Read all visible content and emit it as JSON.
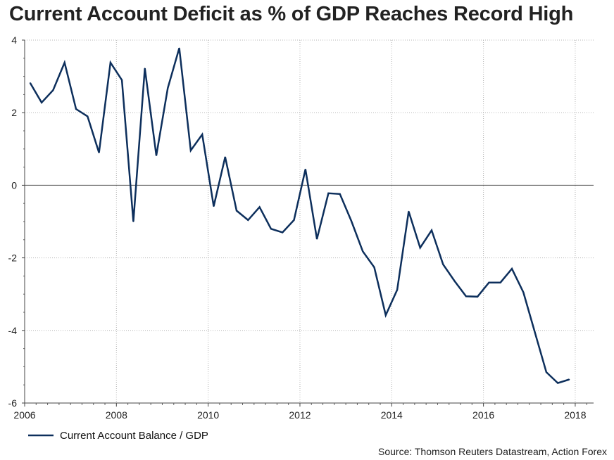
{
  "chart_data": {
    "type": "line",
    "title": "Current Account Deficit as % of GDP Reaches Record High",
    "xlabel": "",
    "ylabel": "",
    "xlim": [
      2006,
      2018.4
    ],
    "ylim": [
      -6,
      4
    ],
    "x_ticks": [
      2006,
      2008,
      2010,
      2012,
      2014,
      2016,
      2018
    ],
    "y_ticks": [
      -6,
      -4,
      -2,
      0,
      2,
      4
    ],
    "x_tick_labels": [
      "2006",
      "2008",
      "2010",
      "2012",
      "2014",
      "2016",
      "2018"
    ],
    "y_tick_labels": [
      "-6",
      "-4",
      "-2",
      "0",
      "2",
      "4"
    ],
    "grid": "dotted",
    "series": [
      {
        "name": "Current Account Balance / GDP",
        "color": "#0d2f5c",
        "x": [
          2006.12,
          2006.37,
          2006.62,
          2006.87,
          2007.12,
          2007.37,
          2007.62,
          2007.87,
          2008.12,
          2008.37,
          2008.62,
          2008.87,
          2009.12,
          2009.37,
          2009.62,
          2009.87,
          2010.12,
          2010.37,
          2010.62,
          2010.87,
          2011.12,
          2011.37,
          2011.62,
          2011.87,
          2012.12,
          2012.37,
          2012.62,
          2012.87,
          2013.12,
          2013.37,
          2013.62,
          2013.87,
          2014.12,
          2014.37,
          2014.62,
          2014.87,
          2015.12,
          2015.37,
          2015.62,
          2015.87,
          2016.12,
          2016.37,
          2016.62,
          2016.87,
          2017.12,
          2017.37,
          2017.62,
          2017.87
        ],
        "values": [
          2.82,
          2.28,
          2.62,
          3.38,
          2.1,
          1.9,
          0.9,
          3.38,
          2.9,
          -1.0,
          3.22,
          0.82,
          2.68,
          3.78,
          0.96,
          1.4,
          -0.58,
          0.78,
          -0.7,
          -0.96,
          -0.6,
          -1.2,
          -1.3,
          -0.96,
          0.44,
          -1.48,
          -0.22,
          -0.24,
          -0.98,
          -1.82,
          -2.26,
          -3.58,
          -2.88,
          -0.72,
          -1.72,
          -1.24,
          -2.18,
          -2.64,
          -3.06,
          -3.07,
          -2.68,
          -2.68,
          -2.3,
          -2.95,
          -4.05,
          -5.15,
          -5.45,
          -5.35
        ]
      }
    ],
    "legend": "bottom-left",
    "annotations": []
  },
  "source": "Source: Thomson Reuters Datastream, Action Forex"
}
